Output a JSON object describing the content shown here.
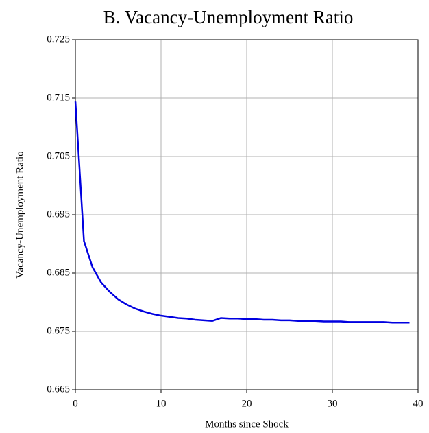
{
  "chart_data": {
    "type": "line",
    "title": "B.   Vacancy-Unemployment Ratio",
    "x_label": "Months since Shock",
    "y_label": "Vacancy-Unemployment Ratio",
    "x": [
      0,
      1,
      2,
      3,
      4,
      5,
      6,
      7,
      8,
      9,
      10,
      11,
      12,
      13,
      14,
      15,
      16,
      17,
      18,
      19,
      20,
      21,
      22,
      23,
      24,
      25,
      26,
      27,
      28,
      29,
      30,
      31,
      32,
      33,
      34,
      35,
      36,
      37,
      38,
      39
    ],
    "series": [
      {
        "name": "Vacancy-Unemployment Ratio",
        "color": "#0000e0",
        "values": [
          0.7145,
          0.6905,
          0.686,
          0.6834,
          0.6818,
          0.6805,
          0.6796,
          0.6789,
          0.6784,
          0.678,
          0.6777,
          0.6775,
          0.6773,
          0.6772,
          0.677,
          0.6769,
          0.6768,
          0.6773,
          0.6772,
          0.6772,
          0.6771,
          0.6771,
          0.677,
          0.677,
          0.6769,
          0.6769,
          0.6768,
          0.6768,
          0.6768,
          0.6767,
          0.6767,
          0.6767,
          0.6766,
          0.6766,
          0.6766,
          0.6766,
          0.6766,
          0.6765,
          0.6765,
          0.6765
        ]
      }
    ],
    "xlim": [
      0,
      40
    ],
    "xticks": [
      0,
      10,
      20,
      30,
      40
    ],
    "ylim": [
      0.665,
      0.725
    ],
    "yticks": [
      0.665,
      0.675,
      0.685,
      0.695,
      0.705,
      0.715,
      0.725
    ],
    "grid": true
  }
}
